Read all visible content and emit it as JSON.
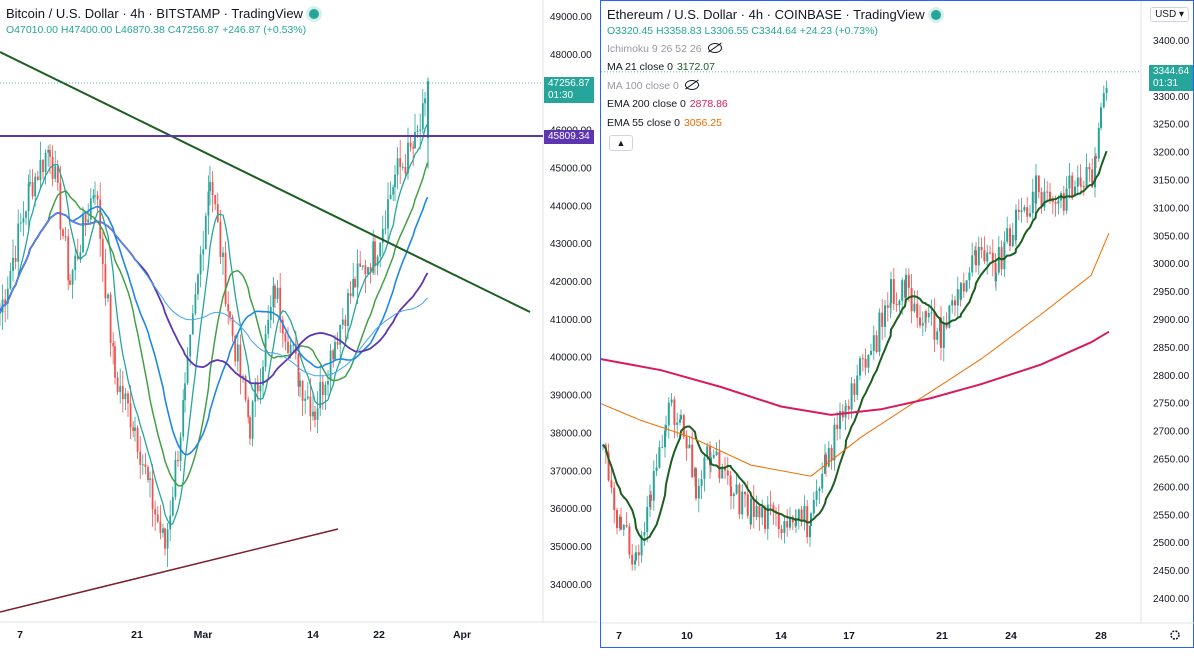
{
  "btc": {
    "title": "Bitcoin / U.S. Dollar · 4h · BITSTAMP · TradingView",
    "ohlc": {
      "o": "O47010.00",
      "h": "H47400.00",
      "l": "L46870.38",
      "c": "C47256.87",
      "chg": "+246.87 (+0.53%)"
    },
    "price_tag": "47256.87",
    "countdown": "01:30",
    "line_tag": "45809.34",
    "price_labels": [
      "49000.00",
      "48000.00",
      "46000.00",
      "45000.00",
      "44000.00",
      "43000.00",
      "42000.00",
      "41000.00",
      "40000.00",
      "39000.00",
      "38000.00",
      "37000.00",
      "36000.00",
      "35000.00",
      "34000.00"
    ],
    "date_labels": [
      "7",
      "21",
      "Mar",
      "14",
      "22",
      "Apr"
    ],
    "colors": {
      "up": "#26a69a",
      "down": "#ef5350",
      "trend": "#1b5e20",
      "hline": "#5e35b1",
      "support": "#7b1f2a"
    }
  },
  "eth": {
    "title": "Ethereum / U.S. Dollar · 4h · COINBASE · TradingView",
    "ohlc": {
      "o": "O3320.45",
      "h": "H3358.83",
      "l": "L3306.55",
      "c": "C3344.64",
      "chg": "+24.23 (+0.73%)"
    },
    "indicators": [
      {
        "label": "Ichimoku 9 26 52 26",
        "value": "",
        "hidden": true
      },
      {
        "label": "MA 21 close 0",
        "value": "3172.07",
        "color": "#1b5e20"
      },
      {
        "label": "MA 100 close 0",
        "value": "",
        "hidden": true
      },
      {
        "label": "EMA 200 close 0",
        "value": "2878.86",
        "color": "#d81b60"
      },
      {
        "label": "EMA 55 close 0",
        "value": "3056.25",
        "color": "#ef6c00"
      }
    ],
    "currency": "USD",
    "price_tag": "3344.64",
    "countdown": "01:31",
    "price_labels": [
      "3400.00",
      "3350.00",
      "3300.00",
      "3250.00",
      "3200.00",
      "3150.00",
      "3100.00",
      "3050.00",
      "3000.00",
      "2950.00",
      "2900.00",
      "2850.00",
      "2800.00",
      "2750.00",
      "2700.00",
      "2650.00",
      "2600.00",
      "2550.00",
      "2500.00",
      "2450.00",
      "2400.00"
    ],
    "date_labels": [
      "7",
      "10",
      "14",
      "17",
      "21",
      "24",
      "28"
    ],
    "colors": {
      "ma21": "#1b5e20",
      "ema200": "#d81b60",
      "ema55": "#ef6c00"
    }
  }
}
